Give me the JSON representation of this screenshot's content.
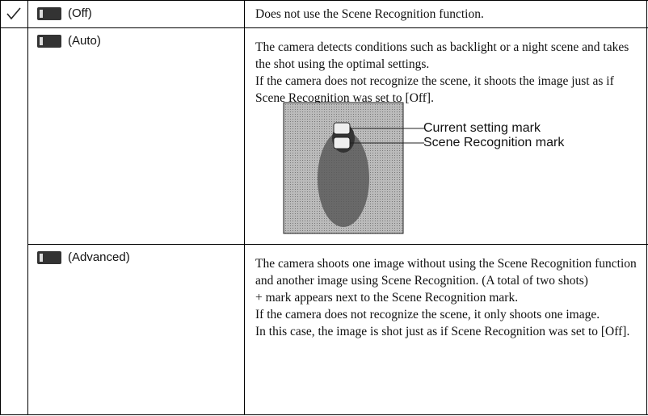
{
  "table": {
    "rows": [
      {
        "option": "(Off)",
        "description": [
          "Does not use the Scene Recognition function."
        ]
      },
      {
        "option": "(Auto)",
        "description": [
          "The camera detects conditions such as backlight or a night scene and takes the shot using the optimal settings.",
          "If the camera does not recognize the scene, it shoots the image just as if Scene Recognition was set to [Off]."
        ],
        "figure": {
          "labels": [
            "Current setting mark",
            "Scene Recognition mark"
          ]
        }
      },
      {
        "option": "(Advanced)",
        "description": [
          "The camera shoots one image without using the Scene Recognition function and another image using Scene Recognition. (A total of two shots)",
          "+ mark appears next to the Scene Recognition mark.",
          "If the camera does not recognize the scene, it only shoots one image.",
          "In this case, the image is shot just as if Scene Recognition was set to [Off]."
        ]
      }
    ]
  }
}
